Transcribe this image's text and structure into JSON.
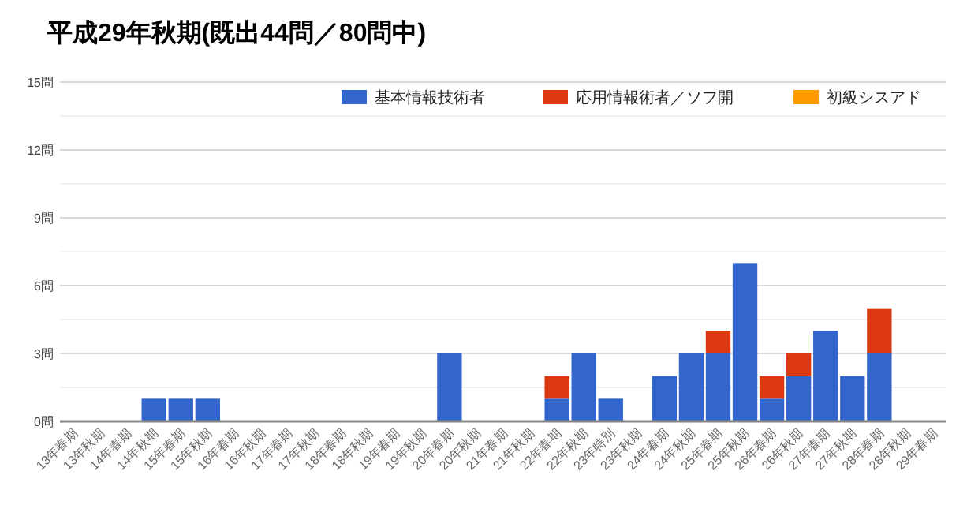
{
  "chart_data": {
    "type": "bar",
    "title": "平成29年秋期(既出44問／80問中)",
    "stacked": true,
    "legend": "top right",
    "grid": "y",
    "categories": [
      "13年春期",
      "13年秋期",
      "14年春期",
      "14年秋期",
      "15年春期",
      "15年秋期",
      "16年春期",
      "16年秋期",
      "17年春期",
      "17年秋期",
      "18年春期",
      "18年秋期",
      "19年春期",
      "19年秋期",
      "20年春期",
      "20年秋期",
      "21年春期",
      "21年秋期",
      "22年春期",
      "22年秋期",
      "23年特別",
      "23年秋期",
      "24年春期",
      "24年秋期",
      "25年春期",
      "25年秋期",
      "26年春期",
      "26年秋期",
      "27年春期",
      "27年秋期",
      "28年春期",
      "28年秋期",
      "29年春期"
    ],
    "series": [
      {
        "name": "基本情報技術者",
        "color": "#3366cc",
        "values": [
          0,
          0,
          0,
          1,
          1,
          1,
          0,
          0,
          0,
          0,
          0,
          0,
          0,
          0,
          3,
          0,
          0,
          0,
          1,
          3,
          1,
          0,
          2,
          3,
          3,
          7,
          1,
          2,
          4,
          2,
          3,
          0,
          0
        ]
      },
      {
        "name": "応用情報術者／ソフ開",
        "color": "#dc3912",
        "values": [
          0,
          0,
          0,
          0,
          0,
          0,
          0,
          0,
          0,
          0,
          0,
          0,
          0,
          0,
          0,
          0,
          0,
          0,
          1,
          0,
          0,
          0,
          0,
          0,
          1,
          0,
          1,
          1,
          0,
          0,
          2,
          0,
          0
        ]
      },
      {
        "name": "初級シスアド",
        "color": "#ff9900",
        "values": [
          0,
          0,
          0,
          0,
          0,
          0,
          0,
          0,
          0,
          0,
          0,
          0,
          0,
          0,
          0,
          0,
          0,
          0,
          0,
          0,
          0,
          0,
          0,
          0,
          0,
          0,
          0,
          0,
          0,
          0,
          0,
          0,
          0
        ]
      }
    ],
    "ylim": [
      0,
      15
    ],
    "yticks": [
      {
        "value": 0,
        "label": "0問"
      },
      {
        "value": 1.5,
        "label": null
      },
      {
        "value": 3,
        "label": "3問"
      },
      {
        "value": 4.5,
        "label": null
      },
      {
        "value": 6,
        "label": "6問"
      },
      {
        "value": 7.5,
        "label": null
      },
      {
        "value": 9,
        "label": "9問"
      },
      {
        "value": 10.5,
        "label": null
      },
      {
        "value": 12,
        "label": "12問"
      },
      {
        "value": 13.5,
        "label": null
      },
      {
        "value": 15,
        "label": "15問"
      }
    ]
  }
}
